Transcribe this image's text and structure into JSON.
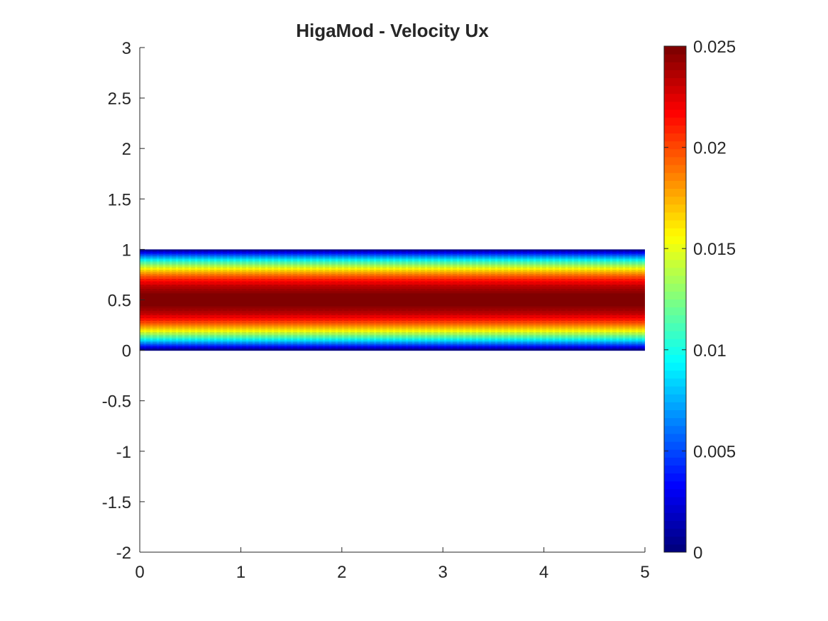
{
  "chart_data": {
    "type": "heatmap",
    "title": "HigaMod - Velocity Ux",
    "xlabel": "",
    "ylabel": "",
    "xlim": [
      0,
      5
    ],
    "ylim": [
      -2,
      3
    ],
    "x_ticks": [
      "0",
      "1",
      "2",
      "3",
      "4",
      "5"
    ],
    "y_ticks": [
      "3",
      "2.5",
      "2",
      "1.5",
      "1",
      "0.5",
      "0",
      "-0.5",
      "-1",
      "-1.5",
      "-2"
    ],
    "x_tick_values": [
      0,
      1,
      2,
      3,
      4,
      5
    ],
    "y_tick_values": [
      3,
      2.5,
      2,
      1.5,
      1,
      0.5,
      0,
      -0.5,
      -1,
      -1.5,
      -2
    ],
    "field": {
      "x_range": [
        0,
        5
      ],
      "y_range": [
        0,
        1
      ],
      "profile": "parabolic",
      "max_value": 0.025,
      "levels": 64
    },
    "colorbar": {
      "colormap": "jet",
      "clim": [
        0,
        0.025
      ],
      "ticks": [
        "0.025",
        "0.02",
        "0.015",
        "0.01",
        "0.005",
        "0"
      ],
      "tick_values": [
        0.025,
        0.02,
        0.015,
        0.01,
        0.005,
        0
      ]
    },
    "grid": false
  }
}
